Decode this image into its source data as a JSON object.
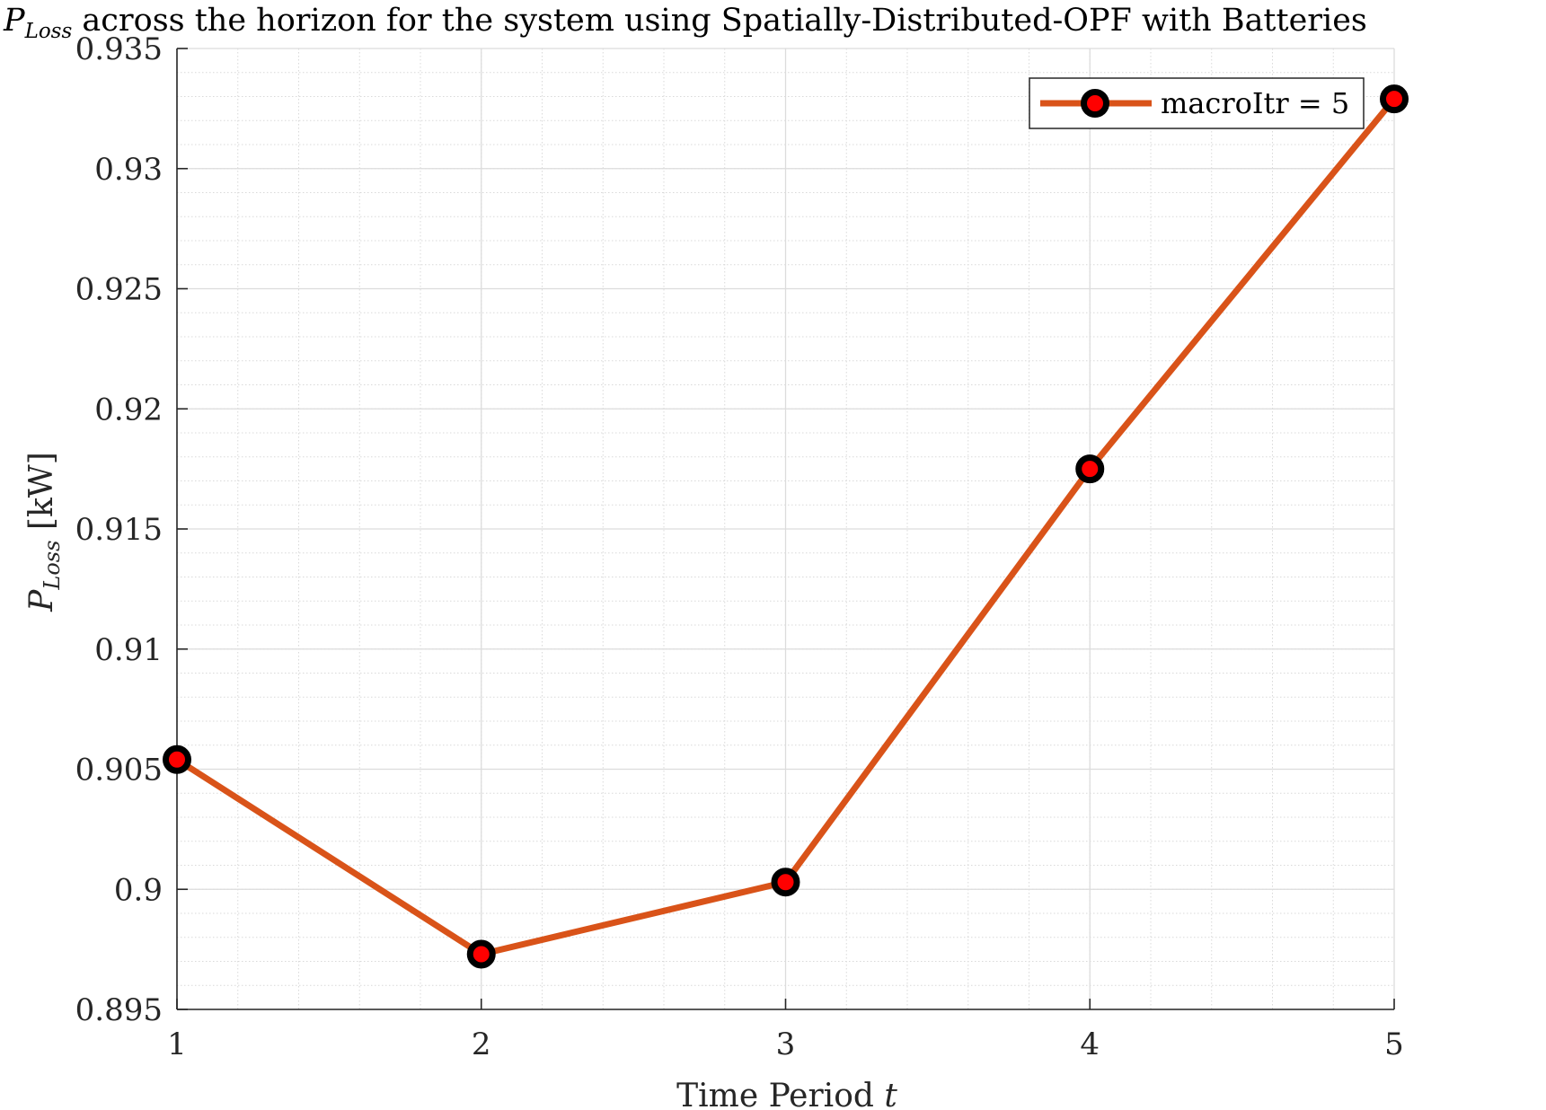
{
  "chart_data": {
    "type": "line",
    "title": {
      "symbol": "P",
      "subscript": "Loss",
      "rest": " across the horizon for the system using Spatially-Distributed-OPF with Batteries"
    },
    "xlabel": {
      "text": "Time Period ",
      "italic": "t"
    },
    "ylabel": {
      "symbol": "P",
      "subscript": "Loss",
      "unit": " [kW]"
    },
    "xlim": [
      1,
      5
    ],
    "ylim": [
      0.895,
      0.935
    ],
    "x_ticks": [
      1,
      2,
      3,
      4,
      5
    ],
    "x_tick_labels": [
      "1",
      "2",
      "3",
      "4",
      "5"
    ],
    "y_ticks": [
      0.895,
      0.9,
      0.905,
      0.91,
      0.915,
      0.92,
      0.925,
      0.93,
      0.935
    ],
    "y_tick_labels": [
      "0.895",
      "0.9",
      "0.905",
      "0.91",
      "0.915",
      "0.92",
      "0.925",
      "0.93",
      "0.935"
    ],
    "grid": true,
    "minor_grid": true,
    "legend_position": "top-right",
    "series": [
      {
        "name": "macroItr = 5",
        "x": [
          1,
          2,
          3,
          4,
          5
        ],
        "y": [
          0.9054,
          0.8973,
          0.9003,
          0.9175,
          0.9329
        ],
        "line_color": "#d95319",
        "marker_edge_color": "#000000",
        "marker_face_color": "#ff0000"
      }
    ]
  }
}
